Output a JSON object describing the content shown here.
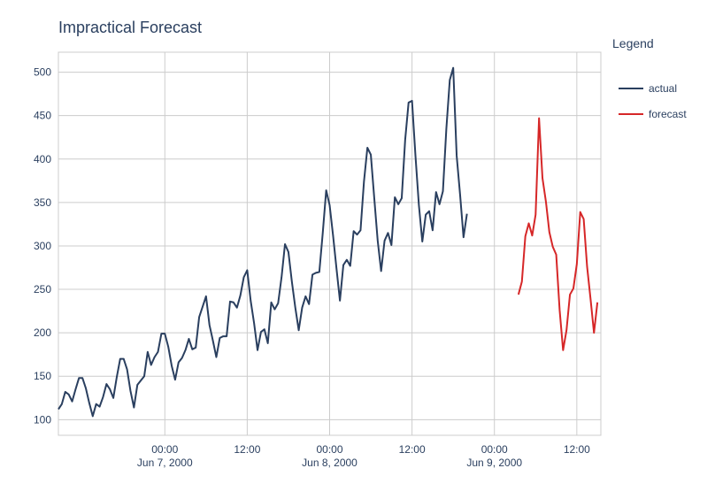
{
  "chart_data": {
    "type": "line",
    "title": "Impractical Forecast",
    "legend": {
      "title": "Legend",
      "placement": "top-right outside"
    },
    "grid": true,
    "ylim": [
      82,
      523
    ],
    "xlim": [
      "2000-06-06 08:30",
      "2000-06-09 15:30"
    ],
    "y_ticks": [
      100,
      150,
      200,
      250,
      300,
      350,
      400,
      450,
      500
    ],
    "x_ticks": [
      {
        "x": "2000-06-07 00:00",
        "label": "00:00",
        "sublabel": "Jun 7, 2000"
      },
      {
        "x": "2000-06-07 12:00",
        "label": "12:00",
        "sublabel": ""
      },
      {
        "x": "2000-06-08 00:00",
        "label": "00:00",
        "sublabel": "Jun 8, 2000"
      },
      {
        "x": "2000-06-08 12:00",
        "label": "12:00",
        "sublabel": ""
      },
      {
        "x": "2000-06-09 00:00",
        "label": "00:00",
        "sublabel": "Jun 9, 2000"
      },
      {
        "x": "2000-06-09 12:00",
        "label": "12:00",
        "sublabel": ""
      }
    ],
    "series": [
      {
        "name": "actual",
        "color": "#2a3f5f",
        "x_start": "2000-06-06 08:30",
        "x_step_minutes": 30,
        "values": [
          112,
          118,
          132,
          129,
          121,
          135,
          148,
          148,
          136,
          119,
          104,
          118,
          115,
          126,
          141,
          135,
          125,
          149,
          170,
          170,
          158,
          133,
          114,
          140,
          145,
          150,
          178,
          163,
          172,
          178,
          199,
          199,
          184,
          162,
          146,
          166,
          171,
          180,
          193,
          181,
          183,
          218,
          230,
          242,
          209,
          191,
          172,
          194,
          196,
          196,
          236,
          235,
          229,
          243,
          264,
          272,
          237,
          211,
          180,
          201,
          204,
          188,
          235,
          227,
          234,
          264,
          302,
          293,
          259,
          229,
          203,
          229,
          242,
          233,
          267,
          269,
          270,
          315,
          364,
          347,
          312,
          274,
          237,
          278,
          284,
          277,
          317,
          313,
          318,
          374,
          413,
          405,
          355,
          306,
          271,
          306,
          315,
          301,
          356,
          348,
          355,
          422,
          465,
          467,
          404,
          347,
          305,
          336,
          340,
          318,
          362,
          348,
          363,
          435,
          491,
          505,
          404,
          359,
          310,
          337
        ]
      },
      {
        "name": "forecast",
        "color": "#d62728",
        "x_start": "2000-06-09 03:30",
        "x_step_minutes": 30,
        "values": [
          244,
          259,
          311,
          326,
          312,
          336,
          447,
          378,
          351,
          316,
          299,
          290,
          226,
          180,
          203,
          244,
          251,
          279,
          339,
          331,
          276,
          239,
          200,
          235
        ]
      }
    ]
  }
}
